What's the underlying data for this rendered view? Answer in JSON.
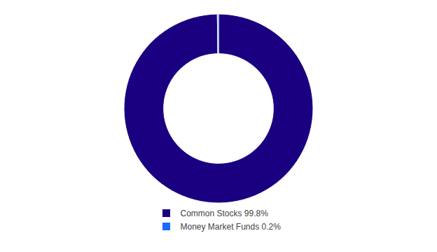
{
  "chart_data": {
    "type": "donut",
    "categories": [
      "Common Stocks 99.8%",
      "Money Market Funds 0.2%"
    ],
    "values": [
      99.8,
      0.2
    ],
    "colors": [
      "#1a0080",
      "#1a6bff"
    ],
    "legend": "bottom"
  }
}
